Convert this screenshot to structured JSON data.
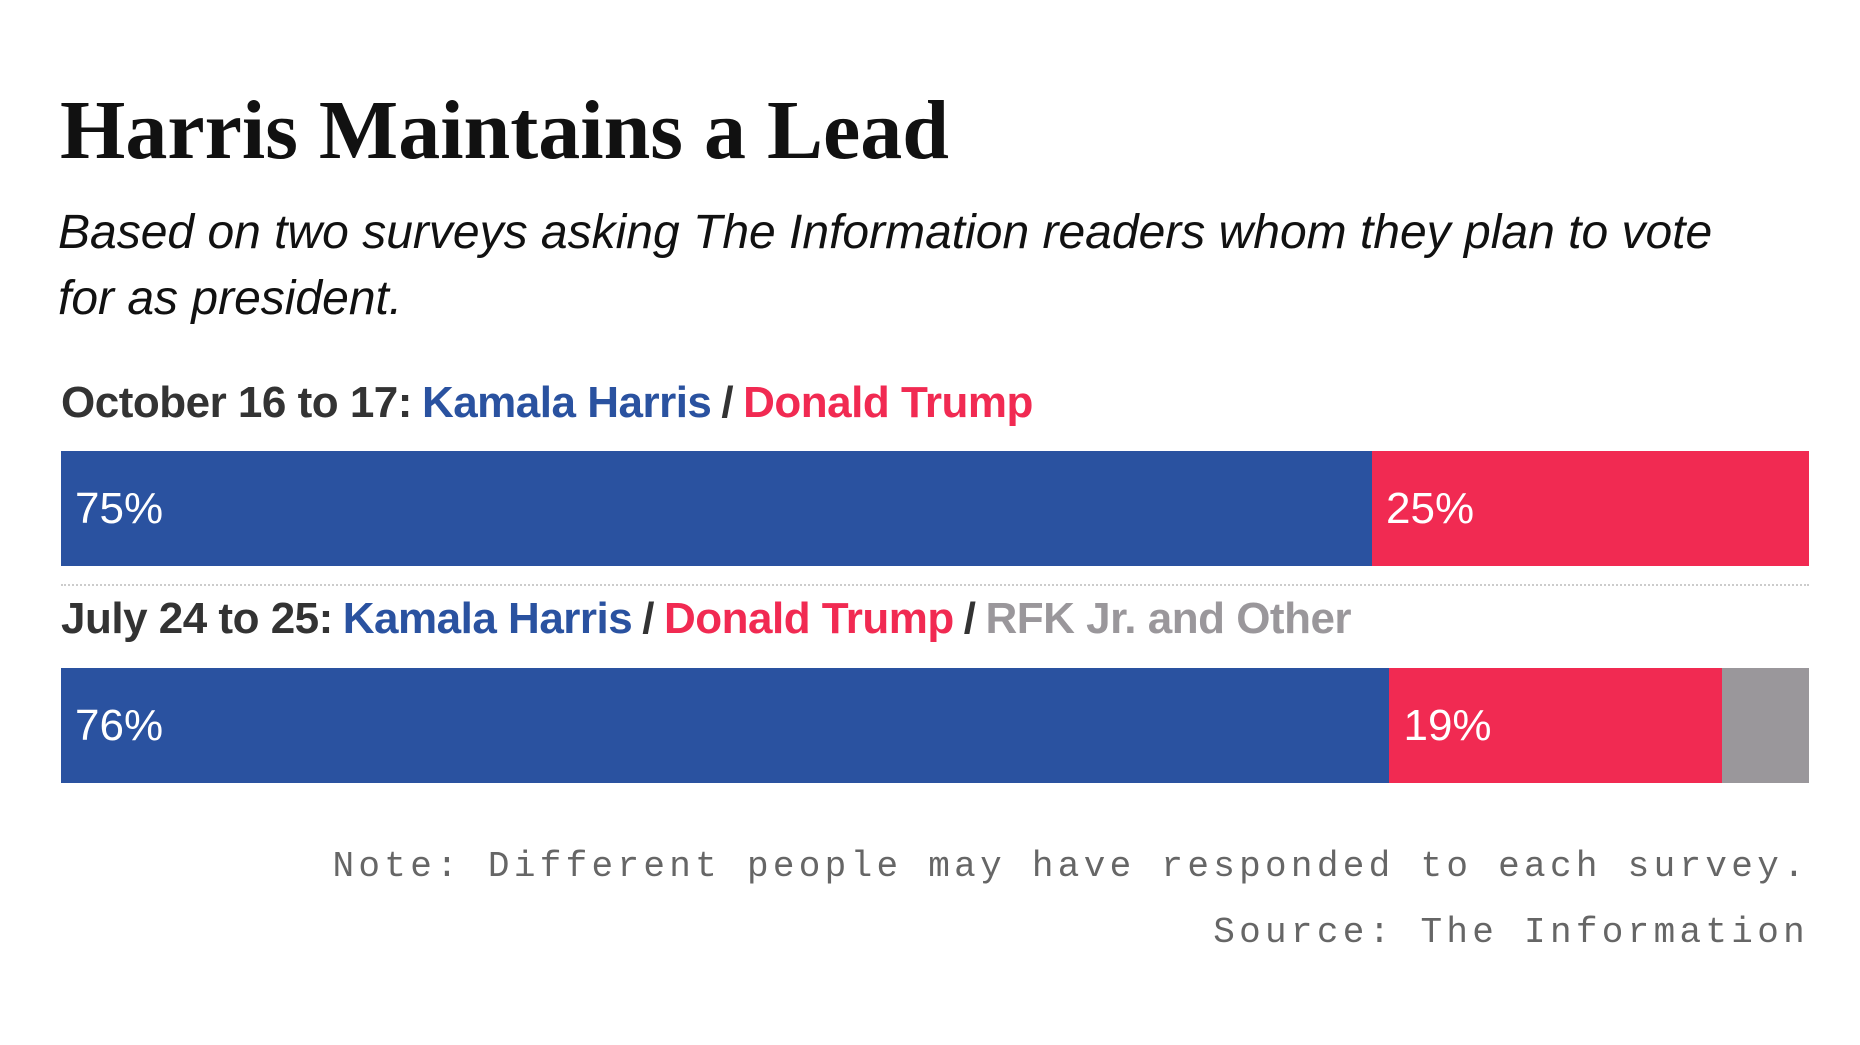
{
  "chart_data": {
    "type": "stacked-bar",
    "title": "Harris Maintains a Lead",
    "subtitle": "Based on two surveys asking The Information readers whom they plan to vote for as president.",
    "categories": [
      "October 16 to 17:",
      "July 24 to 25:"
    ],
    "legend_separator": "/",
    "series": [
      {
        "name": "Kamala Harris",
        "color": "#2a52a0",
        "values": [
          75,
          76
        ],
        "value_labels": [
          "75%",
          "76%"
        ]
      },
      {
        "name": "Donald Trump",
        "color": "#f12a52",
        "values": [
          25,
          19
        ],
        "value_labels": [
          "25%",
          "19%"
        ]
      },
      {
        "name": "RFK Jr. and Other",
        "color": "#9a979b",
        "values": [
          null,
          5
        ]
      }
    ],
    "xlim": [
      0,
      100
    ],
    "note": "Note: Different people may have responded to each survey.",
    "source": "Source: The Information"
  }
}
